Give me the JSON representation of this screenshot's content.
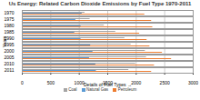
{
  "chart_data": {
    "type": "bar",
    "orientation": "horizontal",
    "title": "Us Energy: Related Carbon Dioxide Emissions by Fuel Type 1970-2011",
    "x_label": "Details of Fuel Types",
    "y_label": "Years",
    "categories": [
      "1970",
      "1975",
      "1980",
      "1985",
      "1990",
      "1995",
      "2000",
      "2005",
      "2010",
      "2011"
    ],
    "series": [
      {
        "name": "Coal",
        "color": "#a5a5a5",
        "values": [
          1100,
          1190,
          1440,
          1640,
          1800,
          1910,
          2160,
          2180,
          1990,
          1870
        ]
      },
      {
        "name": "Natural Gas",
        "color": "#5b9bd5",
        "values": [
          1050,
          940,
          1030,
          920,
          1030,
          1200,
          1240,
          1180,
          1290,
          1300
        ]
      },
      {
        "name": "Petroleum",
        "color": "#ed7d31",
        "values": [
          2150,
          2270,
          2290,
          2060,
          2190,
          2240,
          2460,
          2620,
          2320,
          2270
        ]
      }
    ],
    "xlim": [
      0,
      3000
    ],
    "xticks": [
      0,
      500,
      1000,
      1500,
      2000,
      2500,
      3000
    ],
    "grid": true,
    "legend": "bottom"
  }
}
